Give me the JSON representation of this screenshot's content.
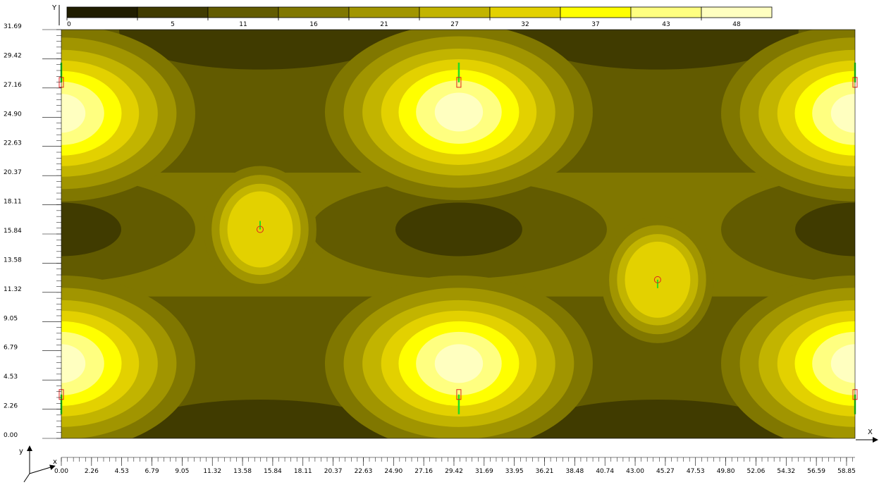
{
  "chart_data": {
    "type": "heatmap",
    "title": "",
    "xlabel": "X",
    "ylabel": "Y",
    "xlim": [
      0,
      59.5
    ],
    "ylim": [
      0,
      31.69
    ],
    "x_ticks": [
      "0.00",
      "2.26",
      "4.53",
      "6.79",
      "9.05",
      "11.32",
      "13.58",
      "15.84",
      "18.11",
      "20.37",
      "22.63",
      "24.90",
      "27.16",
      "29.42",
      "31.69",
      "33.95",
      "36.21",
      "38.48",
      "40.74",
      "43.00",
      "45.27",
      "47.53",
      "49.80",
      "52.06",
      "54.32",
      "56.59",
      "58.85"
    ],
    "y_ticks": [
      "0.00",
      "2.26",
      "4.53",
      "6.79",
      "9.05",
      "11.32",
      "13.58",
      "15.84",
      "18.11",
      "20.37",
      "22.63",
      "24.90",
      "27.16",
      "29.42",
      "31.69"
    ],
    "legend": {
      "placement": "top",
      "labels": [
        "0",
        "5",
        "11",
        "16",
        "21",
        "27",
        "32",
        "37",
        "43",
        "48"
      ],
      "colors": [
        "#201d00",
        "#403b00",
        "#625b00",
        "#807700",
        "#a19500",
        "#c2b400",
        "#e3d100",
        "#ffff00",
        "#ffff80",
        "#ffffc0"
      ]
    },
    "levels": [
      0,
      5,
      11,
      16,
      21,
      27,
      32,
      37,
      43,
      48
    ],
    "peaks": [
      {
        "x": 0.0,
        "y": 25.2,
        "value": 48
      },
      {
        "x": 29.8,
        "y": 25.3,
        "value": 48
      },
      {
        "x": 59.5,
        "y": 25.2,
        "value": 48
      },
      {
        "x": 0.0,
        "y": 5.8,
        "value": 48
      },
      {
        "x": 29.8,
        "y": 5.8,
        "value": 48
      },
      {
        "x": 59.5,
        "y": 5.8,
        "value": 48
      },
      {
        "x": 14.9,
        "y": 16.2,
        "value": 32
      },
      {
        "x": 44.7,
        "y": 12.3,
        "value": 32
      }
    ],
    "corner_axes": {
      "x": "x",
      "y": "y"
    }
  }
}
